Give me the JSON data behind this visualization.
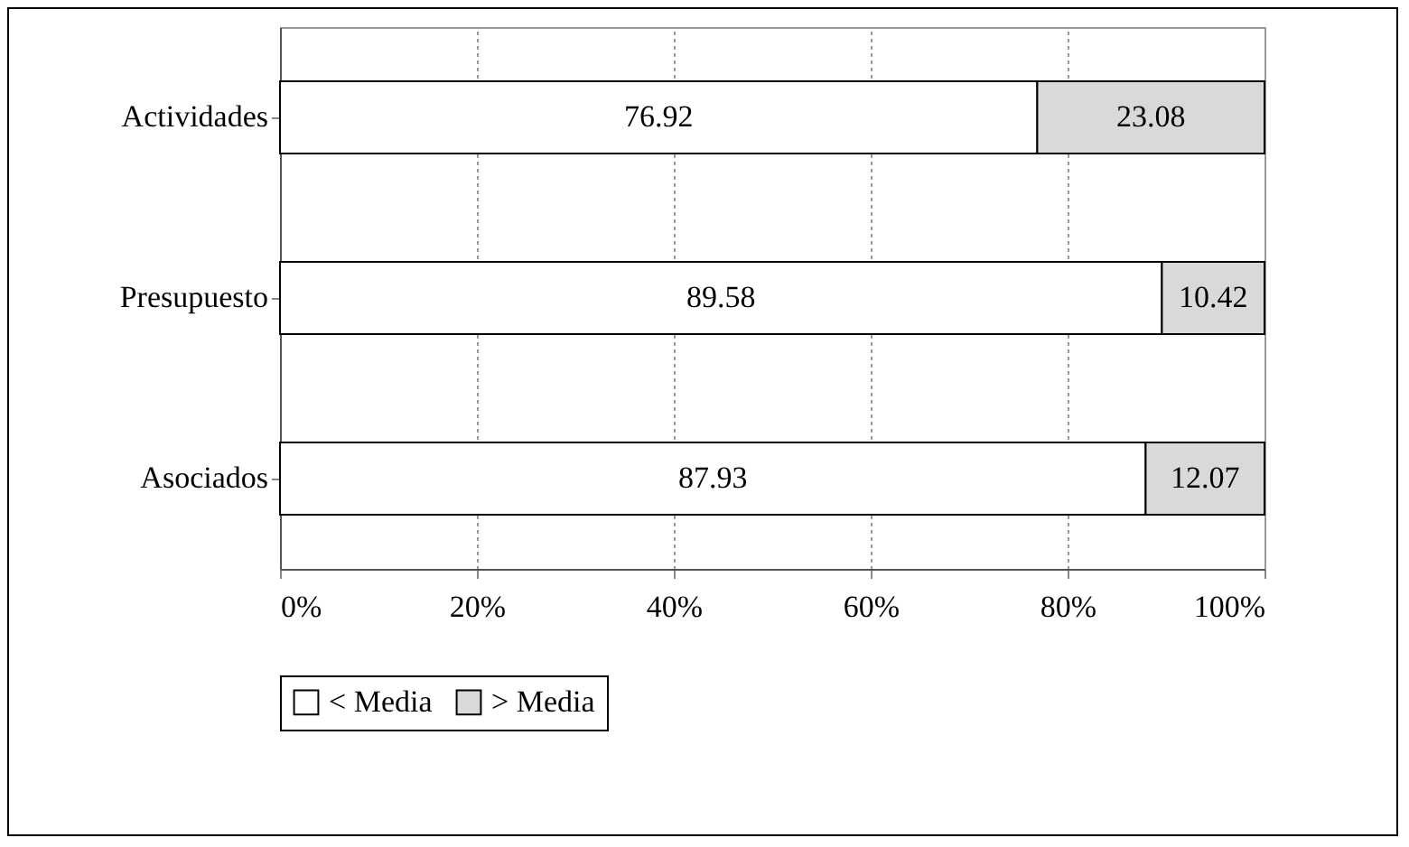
{
  "chart_data": {
    "type": "bar",
    "orientation": "horizontal",
    "stacked": true,
    "categories": [
      "Actividades",
      "Presupuesto",
      "Asociados"
    ],
    "series": [
      {
        "name": "< Media",
        "color": "#ffffff",
        "values": [
          76.92,
          89.58,
          87.93
        ]
      },
      {
        "name": "> Media",
        "color": "#d9d9d9",
        "values": [
          23.08,
          10.42,
          12.07
        ]
      }
    ],
    "xlim": [
      0,
      100
    ],
    "xticks": [
      {
        "value": 0,
        "label": "0%"
      },
      {
        "value": 20,
        "label": "20%"
      },
      {
        "value": 40,
        "label": "40%"
      },
      {
        "value": 60,
        "label": "60%"
      },
      {
        "value": 80,
        "label": "80%"
      },
      {
        "value": 100,
        "label": "100%"
      }
    ],
    "data_labels": true,
    "grid": "x",
    "legend": "bottom"
  }
}
